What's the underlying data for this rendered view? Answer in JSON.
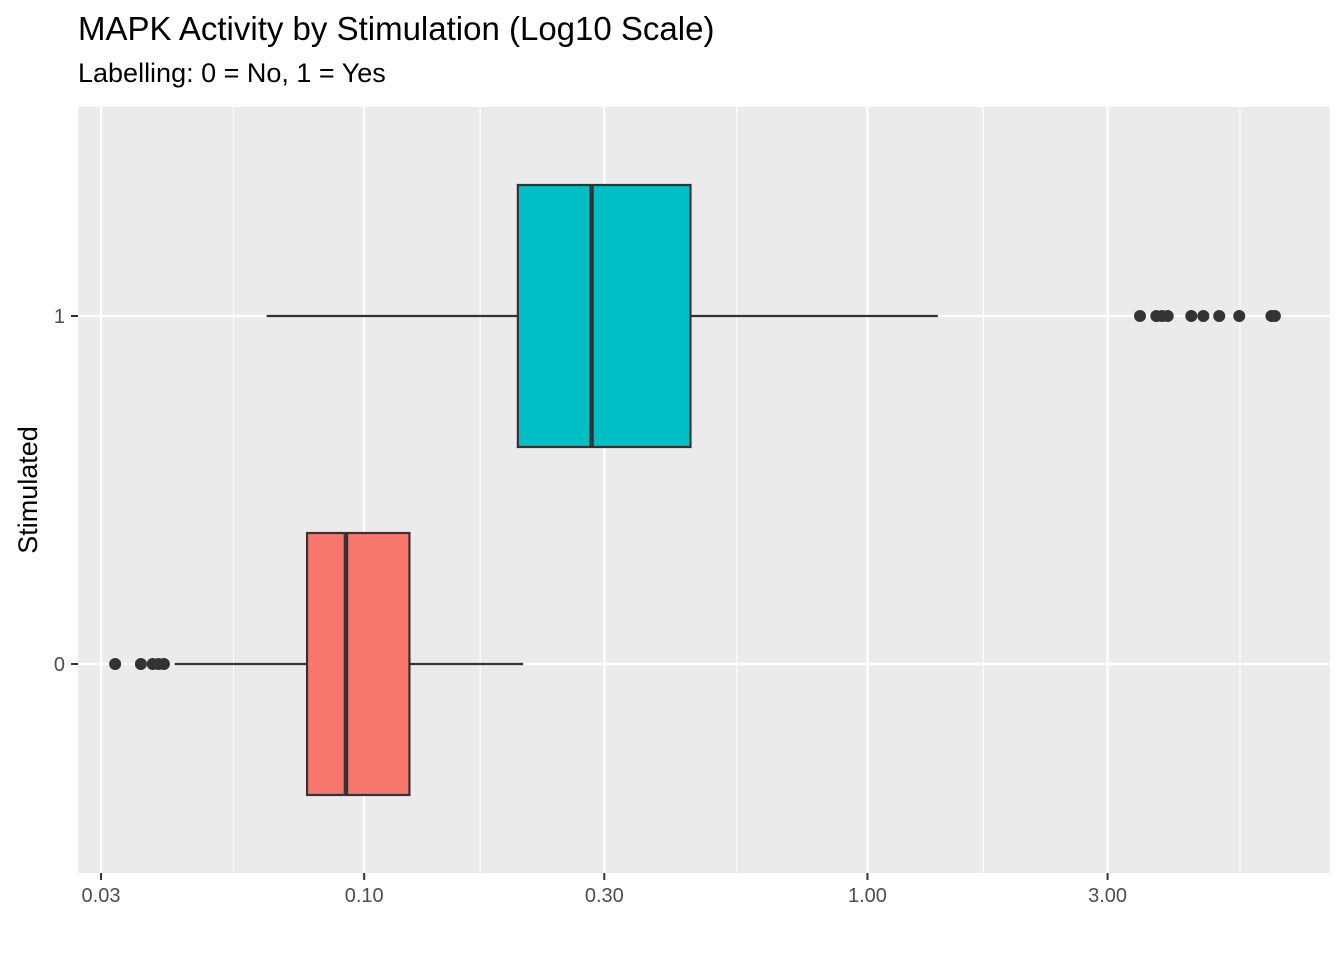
{
  "chart_data": {
    "type": "boxplot",
    "title": "MAPK Activity by Stimulation (Log10 Scale)",
    "subtitle": "Labelling: 0 = No, 1 = Yes",
    "xlabel": "",
    "ylabel": "Stimulated",
    "x_scale": "log10",
    "x_ticks": [
      0.03,
      0.1,
      0.3,
      1.0,
      3.0
    ],
    "x_tick_labels": [
      "0.03",
      "0.10",
      "0.30",
      "1.00",
      "3.00"
    ],
    "x_minor_ticks": [
      0.055,
      0.17,
      0.55,
      1.7,
      5.5
    ],
    "xlim": [
      0.027,
      8.3
    ],
    "categories": [
      "0",
      "1"
    ],
    "grid": true,
    "legend": "none",
    "boxes": [
      {
        "category": "0",
        "fill": "#f8766d",
        "whisker_low": 0.042,
        "q1": 0.077,
        "median": 0.092,
        "q3": 0.123,
        "whisker_high": 0.207,
        "outliers": [
          0.032,
          0.036,
          0.038,
          0.039,
          0.04
        ]
      },
      {
        "category": "1",
        "fill": "#00bfc4",
        "whisker_low": 0.064,
        "q1": 0.202,
        "median": 0.283,
        "q3": 0.445,
        "whisker_high": 1.38,
        "outliers": [
          3.48,
          3.75,
          3.85,
          3.95,
          4.4,
          4.65,
          5.0,
          5.48,
          6.35,
          6.45
        ]
      }
    ]
  }
}
